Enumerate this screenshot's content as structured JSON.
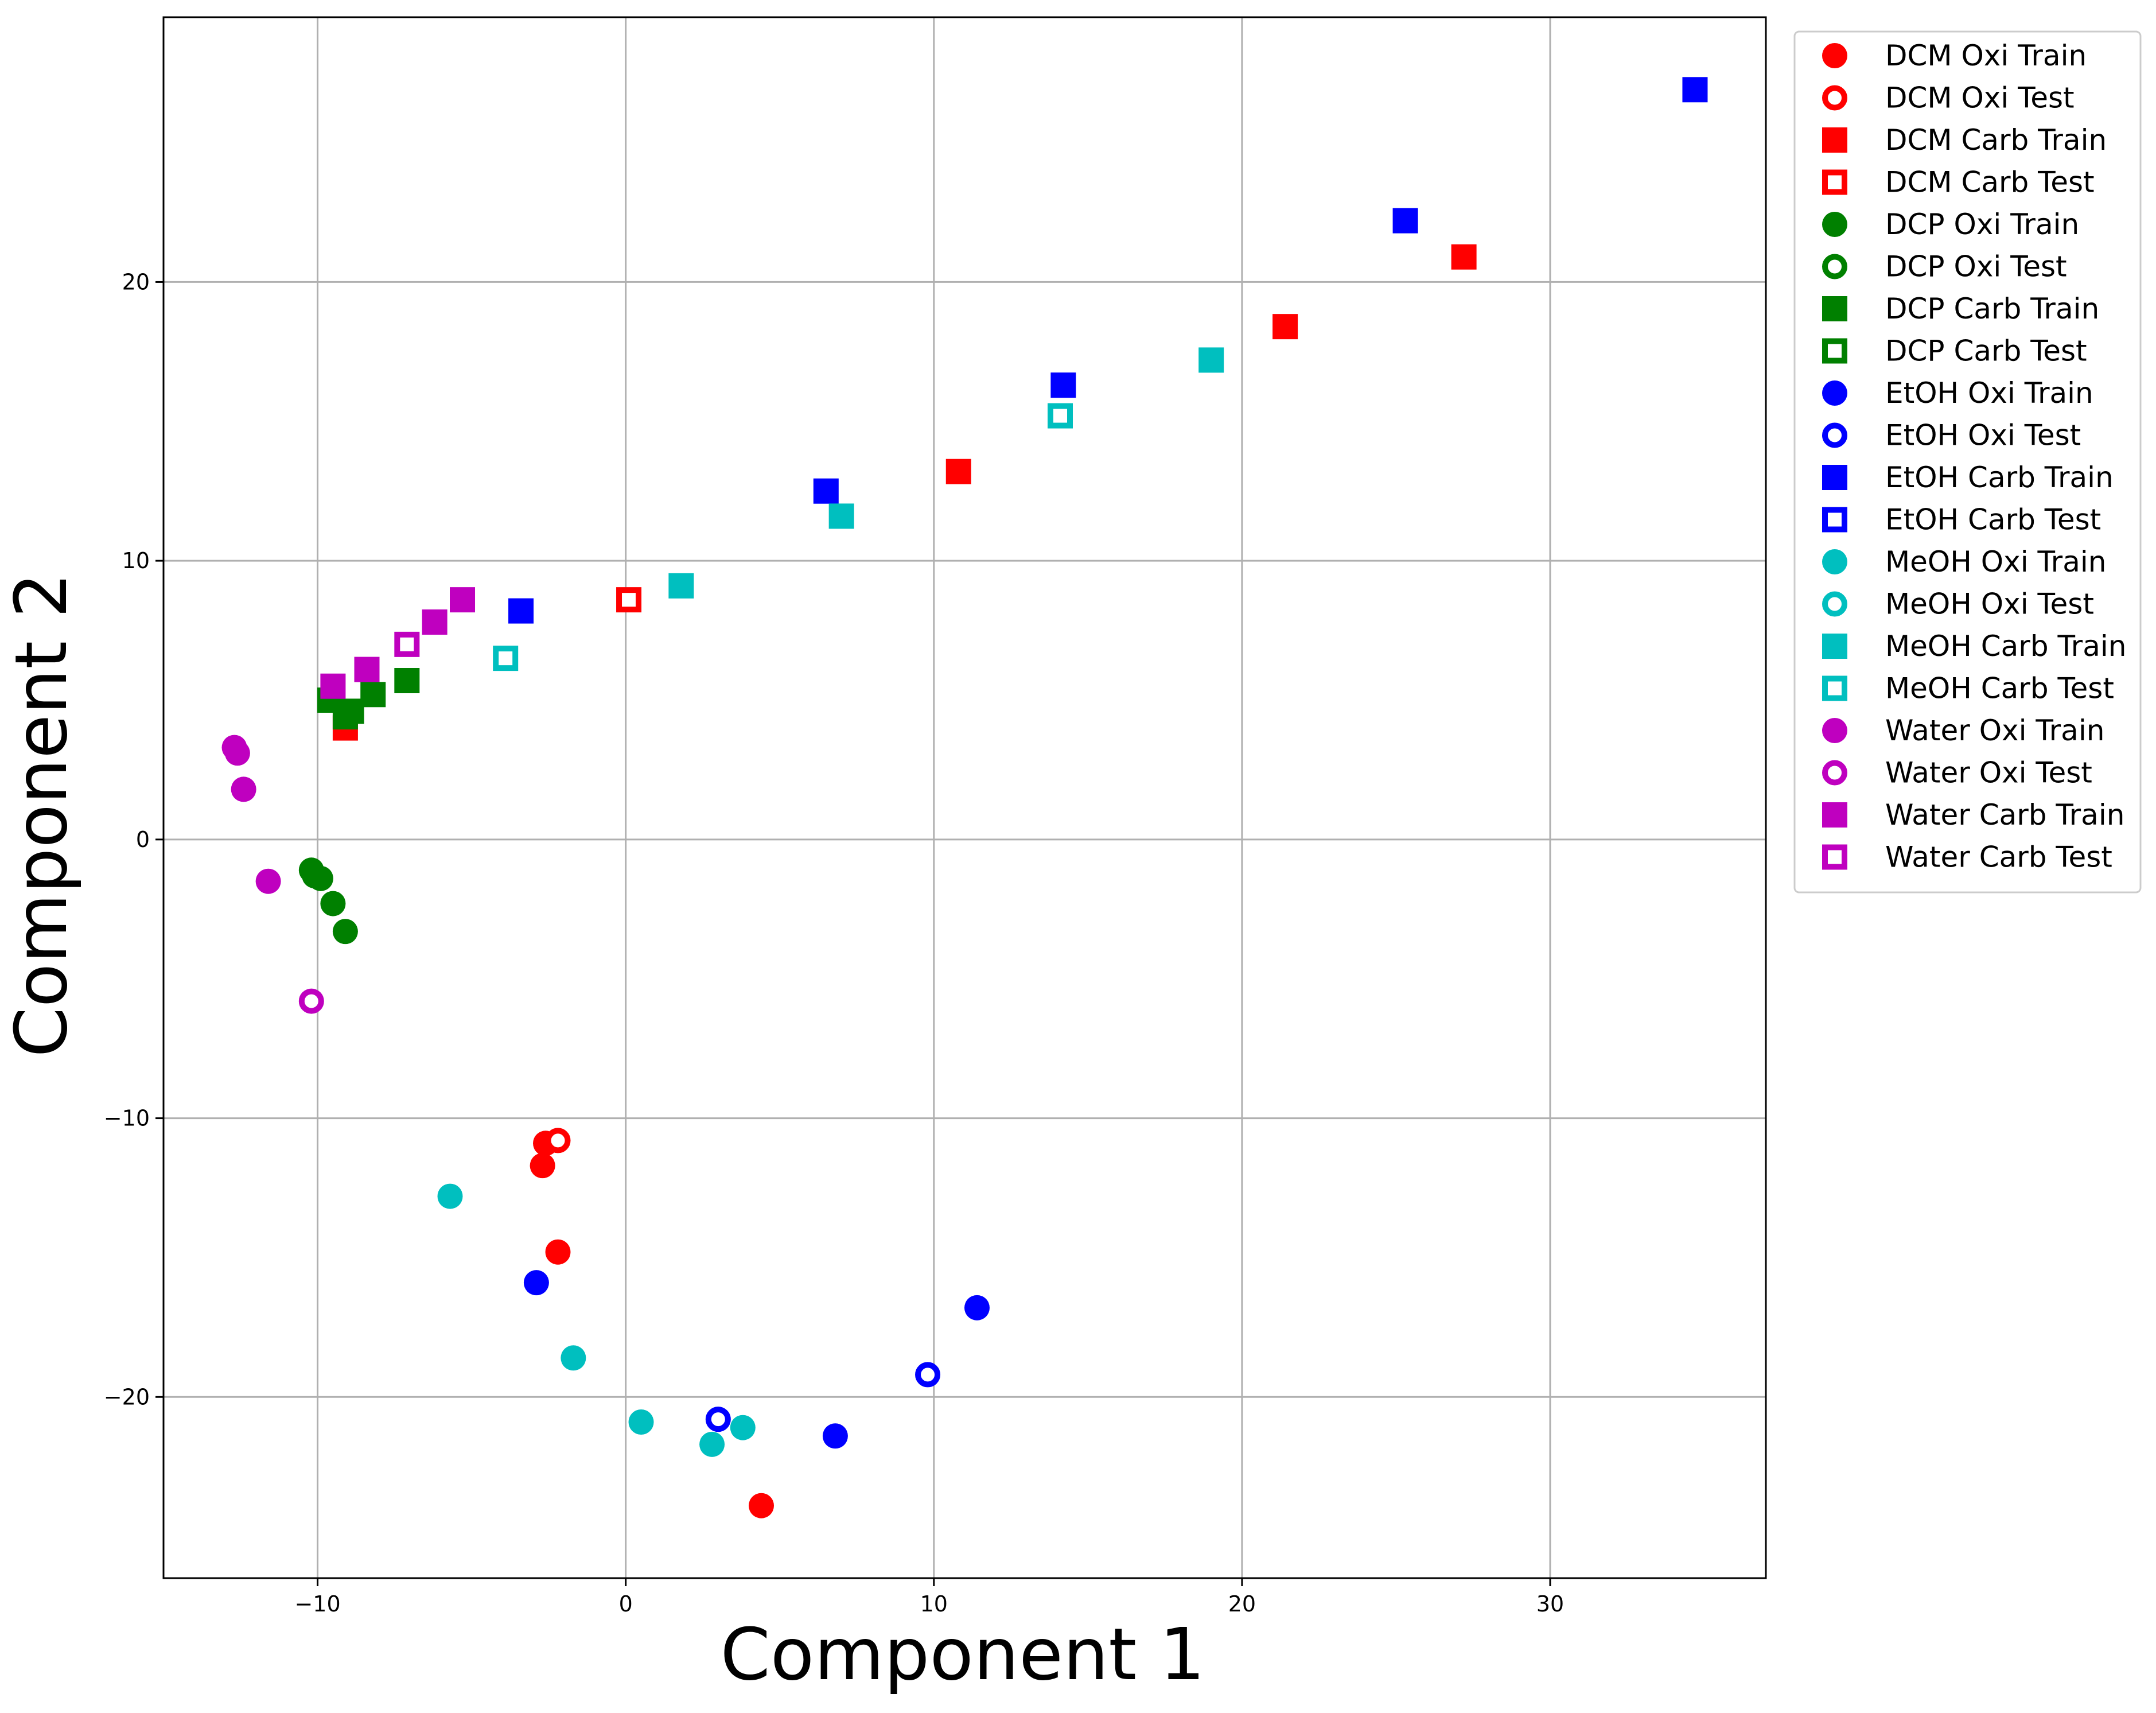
{
  "chart_data": {
    "type": "scatter",
    "title": "",
    "xlabel": "Component 1",
    "ylabel": "Component 2",
    "xlim": [
      -15,
      37
    ],
    "ylim": [
      -26.5,
      29.5
    ],
    "xticks": [
      -10,
      0,
      10,
      20,
      30
    ],
    "yticks": [
      -20,
      -10,
      0,
      10,
      20
    ],
    "xtick_labels": [
      "−10",
      "0",
      "10",
      "20",
      "30"
    ],
    "ytick_labels": [
      "−20",
      "−10",
      "0",
      "10",
      "20"
    ],
    "grid": true,
    "legend_position": "outside-top-right",
    "series": [
      {
        "name": "DCM Oxi Train",
        "color": "#ff0000",
        "marker": "circle",
        "filled": true,
        "points": [
          [
            -2.6,
            -10.9
          ],
          [
            -2.7,
            -11.7
          ],
          [
            -2.2,
            -14.8
          ],
          [
            4.4,
            -23.9
          ]
        ]
      },
      {
        "name": "DCM Oxi Test",
        "color": "#ff0000",
        "marker": "circle",
        "filled": false,
        "points": [
          [
            -2.2,
            -10.8
          ]
        ]
      },
      {
        "name": "DCM Carb Train",
        "color": "#ff0000",
        "marker": "square",
        "filled": true,
        "points": [
          [
            -9.1,
            4.0
          ],
          [
            10.8,
            13.2
          ],
          [
            21.4,
            18.4
          ],
          [
            27.2,
            20.9
          ]
        ]
      },
      {
        "name": "DCM Carb Test",
        "color": "#ff0000",
        "marker": "square",
        "filled": false,
        "points": [
          [
            0.1,
            8.6
          ]
        ]
      },
      {
        "name": "DCP Oxi Train",
        "color": "#008000",
        "marker": "circle",
        "filled": true,
        "points": [
          [
            -10.2,
            -1.1
          ],
          [
            -10.1,
            -1.3
          ],
          [
            -9.9,
            -1.4
          ],
          [
            -9.5,
            -2.3
          ],
          [
            -9.1,
            -3.3
          ]
        ]
      },
      {
        "name": "DCP Oxi Test",
        "color": "#008000",
        "marker": "circle",
        "filled": false,
        "points": []
      },
      {
        "name": "DCP Carb Train",
        "color": "#008000",
        "marker": "square",
        "filled": true,
        "points": [
          [
            -9.6,
            5.0
          ],
          [
            -9.1,
            4.4
          ],
          [
            -8.9,
            4.6
          ],
          [
            -8.2,
            5.2
          ],
          [
            -7.1,
            5.7
          ]
        ]
      },
      {
        "name": "DCP Carb Test",
        "color": "#008000",
        "marker": "square",
        "filled": false,
        "points": []
      },
      {
        "name": "EtOH Oxi Train",
        "color": "#0000ff",
        "marker": "circle",
        "filled": true,
        "points": [
          [
            -2.9,
            -15.9
          ],
          [
            11.4,
            -16.8
          ],
          [
            6.8,
            -21.4
          ]
        ]
      },
      {
        "name": "EtOH Oxi Test",
        "color": "#0000ff",
        "marker": "circle",
        "filled": false,
        "points": [
          [
            3.0,
            -20.8
          ],
          [
            9.8,
            -19.2
          ]
        ]
      },
      {
        "name": "EtOH Carb Train",
        "color": "#0000ff",
        "marker": "square",
        "filled": true,
        "points": [
          [
            -3.4,
            8.2
          ],
          [
            6.5,
            12.5
          ],
          [
            14.2,
            16.3
          ],
          [
            25.3,
            22.2
          ],
          [
            34.7,
            26.9
          ]
        ]
      },
      {
        "name": "EtOH Carb Test",
        "color": "#0000ff",
        "marker": "square",
        "filled": false,
        "points": []
      },
      {
        "name": "MeOH Oxi Train",
        "color": "#00bfbf",
        "marker": "circle",
        "filled": true,
        "points": [
          [
            -5.7,
            -12.8
          ],
          [
            -1.7,
            -18.6
          ],
          [
            0.5,
            -20.9
          ],
          [
            2.8,
            -21.7
          ],
          [
            3.8,
            -21.1
          ]
        ]
      },
      {
        "name": "MeOH Oxi Test",
        "color": "#00bfbf",
        "marker": "circle",
        "filled": false,
        "points": []
      },
      {
        "name": "MeOH Carb Train",
        "color": "#00bfbf",
        "marker": "square",
        "filled": true,
        "points": [
          [
            1.8,
            9.1
          ],
          [
            7.0,
            11.6
          ],
          [
            19.0,
            17.2
          ]
        ]
      },
      {
        "name": "MeOH Carb Test",
        "color": "#00bfbf",
        "marker": "square",
        "filled": false,
        "points": [
          [
            -3.9,
            6.5
          ],
          [
            14.1,
            15.2
          ]
        ]
      },
      {
        "name": "Water Oxi Train",
        "color": "#bf00bf",
        "marker": "circle",
        "filled": true,
        "points": [
          [
            -12.7,
            3.3
          ],
          [
            -12.6,
            3.1
          ],
          [
            -12.4,
            1.8
          ],
          [
            -11.6,
            -1.5
          ]
        ]
      },
      {
        "name": "Water Oxi Test",
        "color": "#bf00bf",
        "marker": "circle",
        "filled": false,
        "points": [
          [
            -10.2,
            -5.8
          ]
        ]
      },
      {
        "name": "Water Carb Train",
        "color": "#bf00bf",
        "marker": "square",
        "filled": true,
        "points": [
          [
            -9.5,
            5.5
          ],
          [
            -8.4,
            6.1
          ],
          [
            -6.2,
            7.8
          ],
          [
            -5.3,
            8.6
          ]
        ]
      },
      {
        "name": "Water Carb Test",
        "color": "#bf00bf",
        "marker": "square",
        "filled": false,
        "points": [
          [
            -7.1,
            7.0
          ]
        ]
      }
    ]
  }
}
